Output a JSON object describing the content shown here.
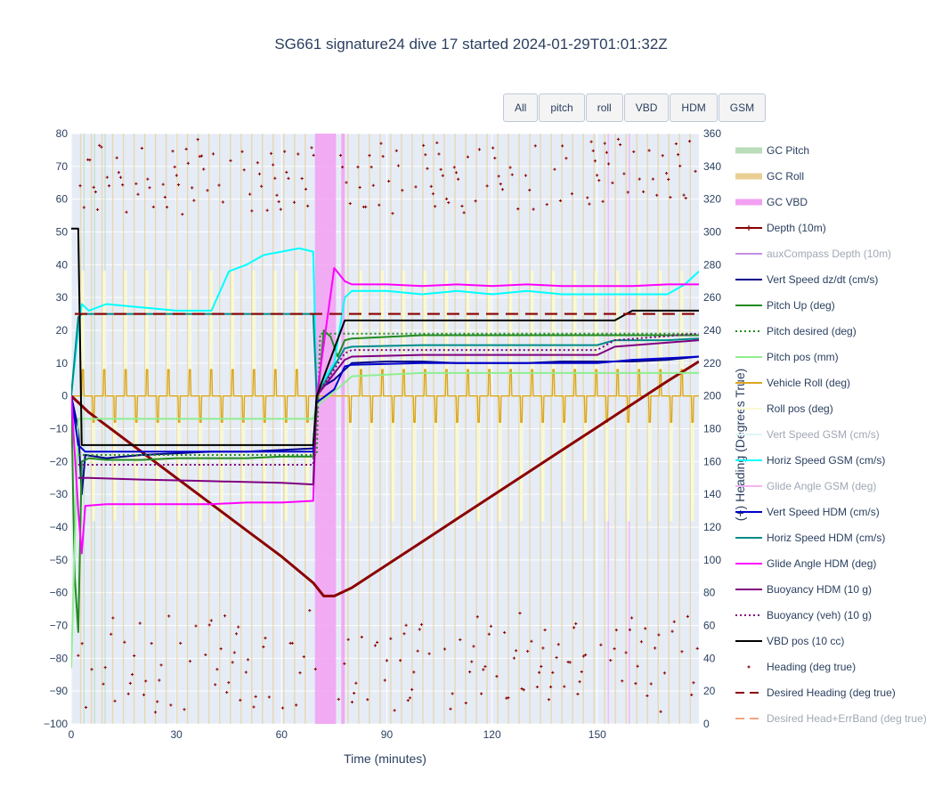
{
  "title": "SG661 signature24 dive 17 started 2024-01-29T01:01:32Z",
  "buttons": [
    "All",
    "pitch",
    "roll",
    "VBD",
    "HDM",
    "GSM"
  ],
  "chart_data": {
    "type": "line",
    "xlabel": "Time (minutes)",
    "ylabel_left": "",
    "ylabel_right": "(+) Heading (Degrees True)",
    "xlim": [
      0,
      179
    ],
    "ylim": [
      -100,
      80
    ],
    "y2lim": [
      0,
      360
    ],
    "x_ticks": [
      0,
      30,
      60,
      90,
      120,
      150
    ],
    "y_ticks": [
      80,
      70,
      60,
      50,
      40,
      30,
      20,
      10,
      0,
      -10,
      -20,
      -30,
      -40,
      -50,
      -60,
      -70,
      -80,
      -90,
      -100
    ],
    "y2_ticks": [
      360,
      340,
      320,
      300,
      280,
      260,
      240,
      220,
      200,
      180,
      160,
      140,
      120,
      100,
      80,
      60,
      40,
      20,
      0
    ],
    "legend_position": "right",
    "gc_vbd_bands": [
      [
        69.5,
        75.5
      ],
      [
        77,
        78
      ]
    ],
    "series": [
      {
        "name": "GC Pitch",
        "color": "#b9dcb9",
        "style": "band"
      },
      {
        "name": "GC Roll",
        "color": "#e9cf93",
        "style": "band"
      },
      {
        "name": "GC VBD",
        "color": "#f2a0f2",
        "style": "band"
      },
      {
        "name": "Depth (10m)",
        "color": "#8b0000",
        "style": "line",
        "x": [
          0,
          2,
          5,
          10,
          20,
          30,
          40,
          50,
          60,
          69,
          72,
          75,
          80,
          90,
          100,
          110,
          120,
          130,
          140,
          150,
          160,
          170,
          179
        ],
        "y": [
          0,
          -2,
          -5,
          -9,
          -17,
          -25,
          -33,
          -41,
          -49,
          -57,
          -61,
          -61,
          -58.5,
          -51.5,
          -44.5,
          -37.5,
          -30.5,
          -23.5,
          -16.5,
          -9.5,
          -2.5,
          4.5,
          10.5
        ]
      },
      {
        "name": "auxCompass Depth (10m)",
        "color": "#c38ee8",
        "style": "line",
        "hidden": true
      },
      {
        "name": "Vert Speed dz/dt (cm/s)",
        "color": "#00008b",
        "style": "line",
        "x": [
          0,
          2,
          3,
          4,
          10,
          20,
          30,
          40,
          50,
          60,
          69,
          70,
          72,
          75,
          78,
          80,
          90,
          100,
          110,
          120,
          130,
          140,
          150,
          160,
          170,
          179
        ],
        "y": [
          0,
          -10,
          -30,
          -18,
          -19,
          -18,
          -17.5,
          -17,
          -17,
          -16.5,
          -16,
          0,
          3,
          5,
          8,
          10,
          10.5,
          10.5,
          10,
          10,
          10,
          10.5,
          10.5,
          10.5,
          11,
          12
        ]
      },
      {
        "name": "Pitch Up (deg)",
        "color": "#228b22",
        "style": "line",
        "x": [
          0,
          1,
          2,
          3,
          5,
          10,
          20,
          30,
          40,
          50,
          60,
          69,
          70,
          72,
          74,
          76,
          78,
          80,
          90,
          100,
          110,
          120,
          130,
          140,
          150,
          160,
          170,
          179
        ],
        "y": [
          0,
          -55,
          -72,
          -20,
          -19,
          -19.5,
          -19.5,
          -19,
          -19,
          -19,
          -18.5,
          -18.5,
          -5,
          20,
          18,
          12,
          17,
          17.5,
          18,
          18.5,
          18.5,
          18.5,
          18.5,
          18.5,
          18.5,
          18.5,
          18.5,
          18.5
        ]
      },
      {
        "name": "Pitch desired (deg)",
        "color": "#228b22",
        "style": "dotted",
        "x": [
          2,
          69,
          70,
          71,
          178
        ],
        "y": [
          -18,
          -18,
          -18,
          19,
          19
        ]
      },
      {
        "name": "Pitch pos (mm)",
        "color": "#90ee90",
        "style": "line",
        "x": [
          0,
          2,
          5,
          60,
          69,
          70,
          78,
          80,
          100,
          120,
          150,
          179
        ],
        "y": [
          -83,
          -7,
          -7,
          -7,
          -7,
          -3,
          4,
          6,
          7,
          7,
          7,
          7
        ]
      },
      {
        "name": "Vehicle Roll (deg)",
        "color": "#daa520",
        "style": "line",
        "x": [
          0,
          179
        ],
        "y": [
          0,
          0
        ]
      },
      {
        "name": "Roll pos (deg)",
        "color": "#fafad2",
        "style": "line",
        "x": [
          0,
          179
        ],
        "y": [
          0,
          0
        ]
      },
      {
        "name": "Vert Speed GSM (cm/s)",
        "color": "#e0f4f8",
        "style": "line",
        "hidden": true
      },
      {
        "name": "Horiz Speed GSM (cm/s)",
        "color": "#00ffff",
        "style": "line",
        "x": [
          0,
          2,
          3,
          5,
          10,
          20,
          30,
          40,
          45,
          50,
          55,
          60,
          65,
          69,
          70,
          72,
          75,
          78,
          80,
          90,
          100,
          110,
          120,
          130,
          140,
          150,
          160,
          170,
          175,
          179
        ],
        "y": [
          0,
          20,
          28,
          26,
          28,
          27,
          26,
          26,
          38,
          40,
          43,
          44,
          45,
          44,
          0,
          5,
          10,
          30,
          32,
          32,
          31,
          32,
          31,
          32,
          31,
          31,
          31,
          31,
          34,
          38
        ]
      },
      {
        "name": "Glide Angle GSM (deg)",
        "color": "#f2b6f2",
        "style": "line",
        "hidden": true
      },
      {
        "name": "Vert Speed HDM (cm/s)",
        "color": "#0000cd",
        "style": "line",
        "x": [
          0,
          2,
          4,
          10,
          20,
          30,
          40,
          50,
          60,
          69,
          70,
          75,
          78,
          80,
          100,
          120,
          140,
          150,
          160,
          170,
          179
        ],
        "y": [
          0,
          -15,
          -17,
          -17,
          -17,
          -17,
          -17,
          -17,
          -17,
          -17,
          -2,
          2,
          9,
          9.5,
          10,
          10,
          10,
          10,
          11,
          11.5,
          12
        ]
      },
      {
        "name": "Horiz Speed HDM (cm/s)",
        "color": "#008b8b",
        "style": "line",
        "x": [
          0,
          2,
          3,
          69,
          70,
          78,
          80,
          100,
          120,
          140,
          150,
          155,
          160,
          170,
          179
        ],
        "y": [
          0,
          24,
          25,
          25,
          0,
          14.5,
          15,
          15.5,
          15.5,
          15.5,
          15.5,
          17,
          17,
          17,
          17.5
        ]
      },
      {
        "name": "Glide Angle HDM (deg)",
        "color": "#ff00ff",
        "style": "line",
        "x": [
          0,
          2,
          3,
          4,
          10,
          20,
          30,
          40,
          50,
          60,
          69,
          70,
          75,
          78,
          80,
          90,
          100,
          110,
          120,
          130,
          140,
          150,
          160,
          170,
          179
        ],
        "y": [
          0,
          -35,
          -48,
          -33.5,
          -33,
          -33,
          -33,
          -33,
          -32.5,
          -32.5,
          -32,
          0,
          39,
          35,
          34,
          34,
          33.5,
          34,
          33.5,
          34,
          33.5,
          33.5,
          33.5,
          34,
          34
        ]
      },
      {
        "name": "Buoyancy HDM (10 g)",
        "color": "#800080",
        "style": "line",
        "x": [
          2,
          5,
          20,
          40,
          60,
          69,
          70,
          78,
          80,
          100,
          120,
          150,
          155,
          179
        ],
        "y": [
          -25,
          -25,
          -25.5,
          -26,
          -26.5,
          -27,
          0,
          11,
          12,
          12.5,
          12.5,
          12.5,
          15,
          17
        ]
      },
      {
        "name": "Buoyancy (veh) (10 g)",
        "color": "#800080",
        "style": "dotted",
        "x": [
          2,
          69,
          70,
          78,
          80,
          150,
          155,
          179
        ],
        "y": [
          -21,
          -21,
          0,
          13,
          14,
          14,
          17,
          19
        ]
      },
      {
        "name": "VBD pos (10 cc)",
        "color": "#000000",
        "style": "line",
        "x": [
          0,
          2,
          3,
          69,
          70,
          78,
          80,
          155,
          160,
          179
        ],
        "y": [
          51,
          51,
          -15,
          -15,
          0,
          23,
          23,
          23,
          26,
          26
        ]
      },
      {
        "name": "Heading (deg true)",
        "color": "#8b0000",
        "style": "markers"
      },
      {
        "name": "Desired Heading (deg true)",
        "color": "#8b0000",
        "style": "dashed",
        "y2": 250
      },
      {
        "name": "Desired Head+ErrBand (deg true)",
        "color": "#f4a582",
        "style": "dashed",
        "hidden": true
      }
    ]
  }
}
